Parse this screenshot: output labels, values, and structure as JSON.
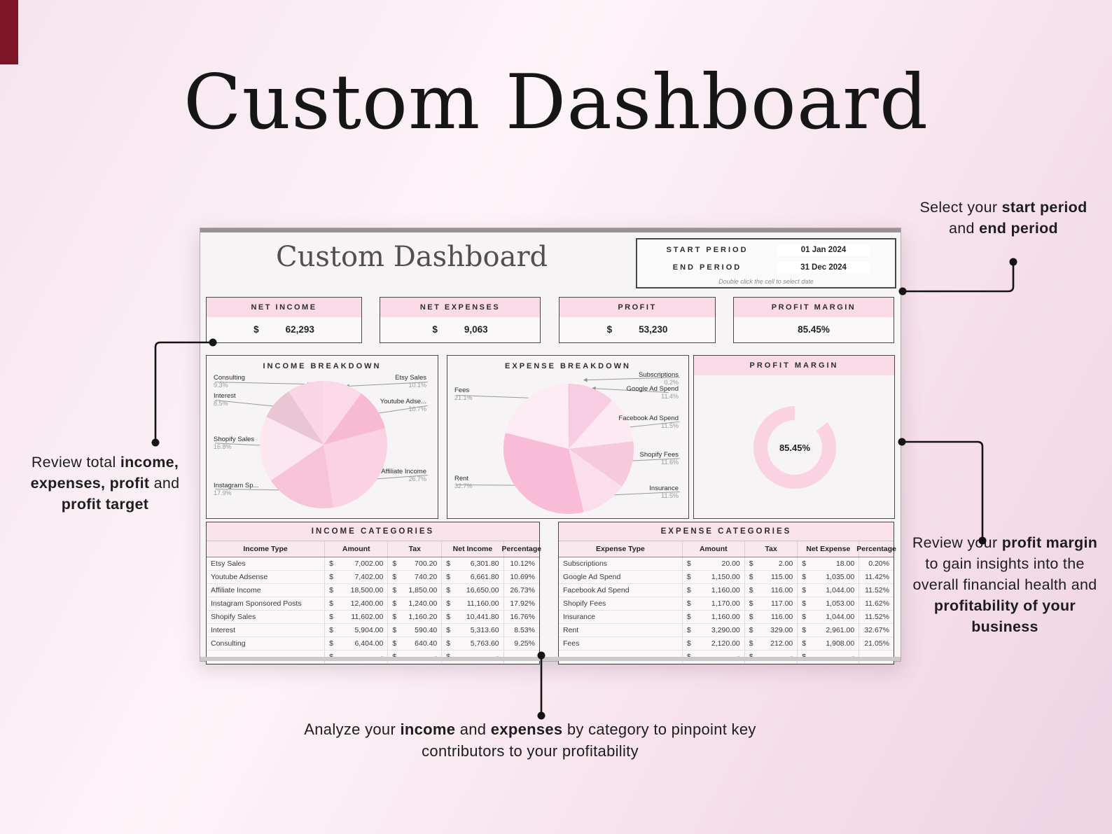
{
  "page_title": "Custom Dashboard",
  "theme": {
    "accent_pink": "#fbdbe7",
    "panel_bg": "#f6f4f4",
    "donut_pink": "#fbd2e1"
  },
  "annotations": {
    "period": {
      "t1": "Select your ",
      "b1": "start period",
      "t2": " and ",
      "b2": "end period"
    },
    "totals": {
      "t1": "Review total ",
      "b1": "income, expenses, profit",
      "t2": " and ",
      "b2": "profit target"
    },
    "margin": {
      "t1": "Review your ",
      "b1": "profit margin",
      "t2": " to gain insights into the overall financial health and ",
      "b2": "profitability of your business"
    },
    "categories": {
      "t1": "Analyze your ",
      "b1": "income",
      "t2": " and ",
      "b2": "expenses",
      "t3": " by category to pinpoint key contributors to your profitability"
    }
  },
  "dashboard": {
    "sheet_title": "Custom Dashboard",
    "period": {
      "start_label": "START PERIOD",
      "start_value": "01 Jan 2024",
      "end_label": "END PERIOD",
      "end_value": "31 Dec 2024",
      "hint": "Double click the cell to select date"
    },
    "kpis": [
      {
        "label": "NET INCOME",
        "currency": "$",
        "value": "62,293"
      },
      {
        "label": "NET EXPENSES",
        "currency": "$",
        "value": "9,063"
      },
      {
        "label": "PROFIT",
        "currency": "$",
        "value": "53,230"
      },
      {
        "label": "PROFIT MARGIN",
        "currency": "",
        "value": "85.45%"
      }
    ]
  },
  "chart_data": [
    {
      "type": "pie",
      "title": "INCOME BREAKDOWN",
      "slices": [
        {
          "name": "Etsy Sales",
          "label": "Etsy Sales",
          "pct": 10.12,
          "pct_label": "10.1%",
          "color": "#fbd9e9"
        },
        {
          "name": "Youtube Adsense",
          "label": "Youtube Adse...",
          "pct": 10.69,
          "pct_label": "10.7%",
          "color": "#f8b9d2"
        },
        {
          "name": "Affiliate Income",
          "label": "Affiliate Income",
          "pct": 26.73,
          "pct_label": "26.7%",
          "color": "#fad2e3"
        },
        {
          "name": "Instagram Sponsored Posts",
          "label": "Instagram Sp...",
          "pct": 17.92,
          "pct_label": "17.9%",
          "color": "#f7c3d9"
        },
        {
          "name": "Shopify Sales",
          "label": "Shopify Sales",
          "pct": 16.76,
          "pct_label": "16.8%",
          "color": "#fce7f1"
        },
        {
          "name": "Interest",
          "label": "Interest",
          "pct": 8.53,
          "pct_label": "8.5%",
          "color": "#eac6d5"
        },
        {
          "name": "Consulting",
          "label": "Consulting",
          "pct": 9.25,
          "pct_label": "9.3%",
          "color": "#f9d6e6"
        }
      ]
    },
    {
      "type": "pie",
      "title": "EXPENSE BREAKDOWN",
      "slices": [
        {
          "name": "Subscriptions",
          "label": "Subscriptions",
          "pct": 0.2,
          "pct_label": "0.2%",
          "color": "#f4b8d0"
        },
        {
          "name": "Google Ad Spend",
          "label": "Google Ad Spend",
          "pct": 11.42,
          "pct_label": "11.4%",
          "color": "#f7cde1"
        },
        {
          "name": "Facebook Ad Spend",
          "label": "Facebook Ad Spend",
          "pct": 11.52,
          "pct_label": "11.5%",
          "color": "#fde9f2"
        },
        {
          "name": "Shopify Fees",
          "label": "Shopify Fees",
          "pct": 11.62,
          "pct_label": "11.6%",
          "color": "#f6c9dc"
        },
        {
          "name": "Insurance",
          "label": "Insurance",
          "pct": 11.52,
          "pct_label": "11.5%",
          "color": "#fbdeeb"
        },
        {
          "name": "Rent",
          "label": "Rent",
          "pct": 32.67,
          "pct_label": "32.7%",
          "color": "#f8bcd6"
        },
        {
          "name": "Fees",
          "label": "Fees",
          "pct": 21.05,
          "pct_label": "21.1%",
          "color": "#fcebf3"
        }
      ]
    },
    {
      "type": "donut",
      "title": "PROFIT MARGIN",
      "value_pct": 85.45,
      "label": "85.45%",
      "color": "#fbd2e1",
      "track_color": "#f6f4f4"
    }
  ],
  "tables": {
    "income": {
      "banner": "INCOME CATEGORIES",
      "headers": [
        "Income Type",
        "Amount",
        "Tax",
        "Net Income",
        "Percentage"
      ],
      "rows": [
        [
          "Etsy Sales",
          "7,002.00",
          "700.20",
          "6,301.80",
          "10.12%"
        ],
        [
          "Youtube Adsense",
          "7,402.00",
          "740.20",
          "6,661.80",
          "10.69%"
        ],
        [
          "Affiliate Income",
          "18,500.00",
          "1,850.00",
          "16,650.00",
          "26.73%"
        ],
        [
          "Instagram Sponsored Posts",
          "12,400.00",
          "1,240.00",
          "11,160.00",
          "17.92%"
        ],
        [
          "Shopify Sales",
          "11,602.00",
          "1,160.20",
          "10,441.80",
          "16.76%"
        ],
        [
          "Interest",
          "5,904.00",
          "590.40",
          "5,313.60",
          "8.53%"
        ],
        [
          "Consulting",
          "6,404.00",
          "640.40",
          "5,763.60",
          "9.25%"
        ],
        [
          "",
          "-",
          "-",
          "-",
          ""
        ]
      ]
    },
    "expense": {
      "banner": "EXPENSE CATEGORIES",
      "headers": [
        "Expense Type",
        "Amount",
        "Tax",
        "Net Expense",
        "Percentage"
      ],
      "rows": [
        [
          "Subscriptions",
          "20.00",
          "2.00",
          "18.00",
          "0.20%"
        ],
        [
          "Google Ad Spend",
          "1,150.00",
          "115.00",
          "1,035.00",
          "11.42%"
        ],
        [
          "Facebook Ad Spend",
          "1,160.00",
          "116.00",
          "1,044.00",
          "11.52%"
        ],
        [
          "Shopify Fees",
          "1,170.00",
          "117.00",
          "1,053.00",
          "11.62%"
        ],
        [
          "Insurance",
          "1,160.00",
          "116.00",
          "1,044.00",
          "11.52%"
        ],
        [
          "Rent",
          "3,290.00",
          "329.00",
          "2,961.00",
          "32.67%"
        ],
        [
          "Fees",
          "2,120.00",
          "212.00",
          "1,908.00",
          "21.05%"
        ],
        [
          "",
          "-",
          "-",
          "-",
          ""
        ]
      ]
    }
  }
}
